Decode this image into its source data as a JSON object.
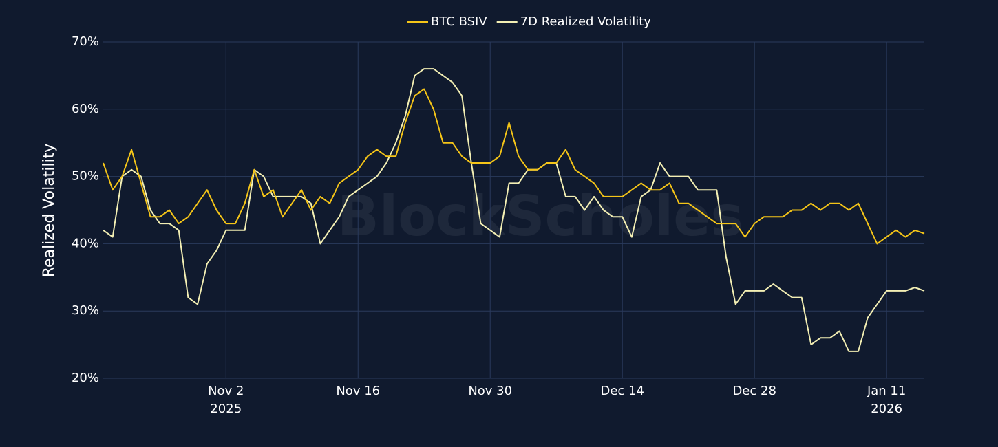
{
  "chart_data": {
    "type": "line",
    "title_legend_position": "top",
    "watermark": "BlockScholes",
    "y_label": "Realized Volatility",
    "x": [
      "2025-10-20",
      "2025-10-21",
      "2025-10-22",
      "2025-10-23",
      "2025-10-24",
      "2025-10-25",
      "2025-10-26",
      "2025-10-27",
      "2025-10-28",
      "2025-10-29",
      "2025-10-30",
      "2025-10-31",
      "2025-11-01",
      "2025-11-02",
      "2025-11-03",
      "2025-11-04",
      "2025-11-05",
      "2025-11-06",
      "2025-11-07",
      "2025-11-08",
      "2025-11-09",
      "2025-11-10",
      "2025-11-11",
      "2025-11-12",
      "2025-11-13",
      "2025-11-14",
      "2025-11-15",
      "2025-11-16",
      "2025-11-17",
      "2025-11-18",
      "2025-11-19",
      "2025-11-20",
      "2025-11-21",
      "2025-11-22",
      "2025-11-23",
      "2025-11-24",
      "2025-11-25",
      "2025-11-26",
      "2025-11-27",
      "2025-11-28",
      "2025-11-29",
      "2025-11-30",
      "2025-12-01",
      "2025-12-02",
      "2025-12-03",
      "2025-12-04",
      "2025-12-05",
      "2025-12-06",
      "2025-12-07",
      "2025-12-08",
      "2025-12-09",
      "2025-12-10",
      "2025-12-11",
      "2025-12-12",
      "2025-12-13",
      "2025-12-14",
      "2025-12-15",
      "2025-12-16",
      "2025-12-17",
      "2025-12-18",
      "2025-12-19",
      "2025-12-20",
      "2025-12-21",
      "2025-12-22",
      "2025-12-23",
      "2025-12-24",
      "2025-12-25",
      "2025-12-26",
      "2025-12-27",
      "2025-12-28",
      "2025-12-29",
      "2025-12-30",
      "2025-12-31",
      "2026-01-01",
      "2026-01-02",
      "2026-01-03",
      "2026-01-04",
      "2026-01-05",
      "2026-01-06",
      "2026-01-07",
      "2026-01-08",
      "2026-01-09",
      "2026-01-10",
      "2026-01-11",
      "2026-01-12",
      "2026-01-13",
      "2026-01-14",
      "2026-01-15"
    ],
    "series": [
      {
        "name": "BTC BSIV",
        "color": "#f5c518",
        "values": [
          52,
          48,
          50,
          54,
          49,
          44,
          44,
          45,
          43,
          44,
          46,
          48,
          45,
          43,
          43,
          46,
          51,
          47,
          48,
          44,
          46,
          48,
          45,
          47,
          46,
          49,
          50,
          51,
          53,
          54,
          53,
          53,
          58,
          62,
          63,
          60,
          55,
          55,
          53,
          52,
          52,
          52,
          53,
          58,
          53,
          51,
          51,
          52,
          52,
          54,
          51,
          50,
          49,
          47,
          47,
          47,
          48,
          49,
          48,
          48,
          49,
          46,
          46,
          45,
          44,
          43,
          43,
          43,
          41,
          43,
          44,
          44,
          44,
          45,
          45,
          46,
          45,
          46,
          46,
          45,
          46,
          43,
          40,
          41,
          42,
          41,
          42,
          41.5
        ]
      },
      {
        "name": "7D Realized Volatility",
        "color": "#f3efb4",
        "values": [
          42,
          41,
          50,
          51,
          50,
          45,
          43,
          43,
          42,
          32,
          31,
          37,
          39,
          42,
          42,
          42,
          51,
          50,
          47,
          47,
          47,
          47,
          46,
          40,
          42,
          44,
          47,
          48,
          49,
          50,
          52,
          55,
          59,
          65,
          66,
          66,
          65,
          64,
          62,
          52,
          43,
          42,
          41,
          49,
          49,
          51,
          51,
          52,
          52,
          47,
          47,
          45,
          47,
          45,
          44,
          44,
          41,
          47,
          48,
          52,
          50,
          50,
          50,
          48,
          48,
          48,
          38,
          31,
          33,
          33,
          33,
          34,
          33,
          32,
          32,
          25,
          26,
          26,
          27,
          24,
          24,
          29,
          31,
          33,
          33,
          33,
          33.5,
          33
        ]
      }
    ],
    "xlim": [
      "2025-10-20",
      "2026-01-15"
    ],
    "xticks": [
      {
        "value": "2025-11-02",
        "label": "Nov 2\n2025"
      },
      {
        "value": "2025-11-16",
        "label": "Nov 16"
      },
      {
        "value": "2025-11-30",
        "label": "Nov 30"
      },
      {
        "value": "2025-12-14",
        "label": "Dec 14"
      },
      {
        "value": "2025-12-28",
        "label": "Dec 28"
      },
      {
        "value": "2026-01-11",
        "label": "Jan 11\n2026"
      }
    ],
    "ylim": [
      20,
      70
    ],
    "yticks": [
      {
        "value": 20,
        "label": "20%"
      },
      {
        "value": 30,
        "label": "30%"
      },
      {
        "value": 40,
        "label": "40%"
      },
      {
        "value": 50,
        "label": "50%"
      },
      {
        "value": 60,
        "label": "60%"
      },
      {
        "value": 70,
        "label": "70%"
      }
    ],
    "grid": true
  }
}
